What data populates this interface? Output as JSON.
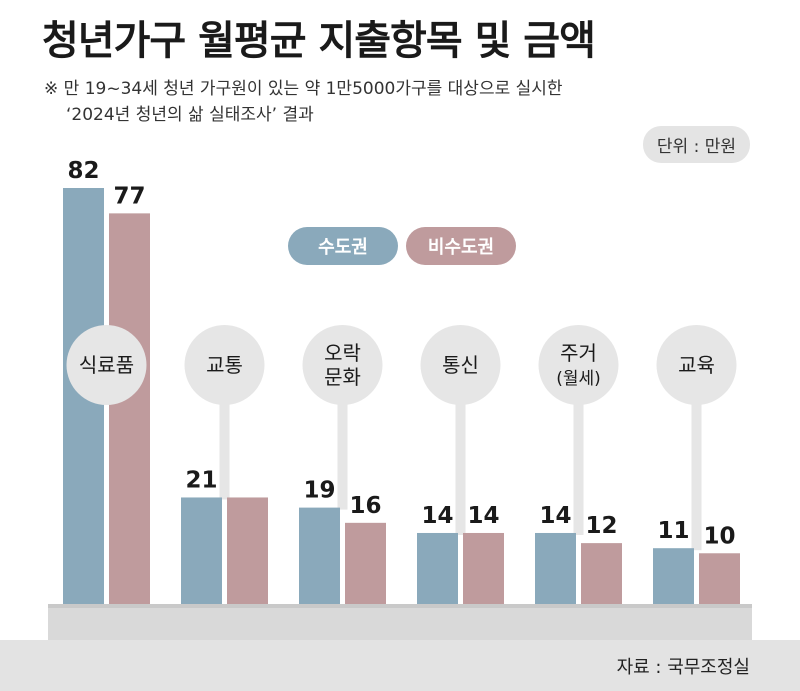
{
  "title": "청년가구 월평균 지출항목 및 금액",
  "note": {
    "line1": "※ 만 19~34세 청년 가구원이 있는 약 1만5000가구를 대상으로 실시한",
    "line2": "‘2024년 청년의 삶 실태조사’ 결과"
  },
  "unit": "단위 : 만원",
  "source": "자료 : 국무조정실",
  "colors": {
    "capital": "#8aa9bb",
    "non_capital": "#bf9b9d",
    "bubble": "#e6e6e6",
    "baseline": "#d9d9d9"
  },
  "chart_data": {
    "type": "bar",
    "categories": [
      [
        "식료품"
      ],
      [
        "교통"
      ],
      [
        "오락",
        "문화"
      ],
      [
        "통신"
      ],
      [
        "주거",
        "(월세)"
      ],
      [
        "교육"
      ]
    ],
    "series": [
      {
        "name": "수도권",
        "values": [
          82,
          21,
          19,
          14,
          14,
          11
        ]
      },
      {
        "name": "비수도권",
        "values": [
          77,
          21,
          null,
          14,
          12,
          10
        ]
      }
    ],
    "series_data_labels": [
      [
        "82",
        "21",
        "19",
        "14",
        "14",
        "11"
      ],
      [
        "77",
        "",
        "16",
        "14",
        "12",
        "10"
      ]
    ],
    "series_bar_values": [
      [
        82,
        21,
        19,
        14,
        14,
        11
      ],
      [
        77,
        21,
        16,
        14,
        12,
        10
      ]
    ],
    "ylim": [
      0,
      85
    ],
    "grid": false,
    "legend": "top-center"
  }
}
